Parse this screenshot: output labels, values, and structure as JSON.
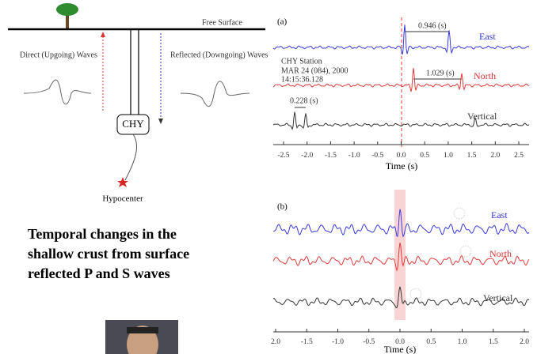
{
  "diagram": {
    "free_surface": "Free Surface",
    "direct_waves": "Direct (Upgoing) Waves",
    "reflected_waves": "Reflected (Downgoing) Waves",
    "station": "CHY",
    "hypocenter": "Hypocenter"
  },
  "caption": [
    "Temporal changes in the",
    "shallow crust from surface",
    "reflected P and S waves"
  ],
  "panel_a": {
    "label": "(a)",
    "station_info": [
      "CHY Station",
      "MAR 24 (084), 2000",
      "14:15:36.128"
    ],
    "traces": [
      "East",
      "North",
      "Vertical"
    ],
    "intervals": [
      "0.946 (s)",
      "1.029 (s)",
      "0.228 (s)"
    ],
    "x_ticks": [
      "-2.5",
      "-2.0",
      "-1.5",
      "-1.0",
      "-0.5",
      "0.0",
      "0.5",
      "1.0",
      "1.5",
      "2.0",
      "2.5"
    ],
    "x_label": "Time (s)"
  },
  "panel_b": {
    "label": "(b)",
    "traces": [
      "East",
      "North",
      "Vertical"
    ],
    "x_ticks": [
      "2.0",
      "-1.5",
      "-1.0",
      "-0.5",
      "0.0",
      "0.5",
      "1.0",
      "1.5",
      "2.0"
    ],
    "x_label": "Time (s)"
  }
}
